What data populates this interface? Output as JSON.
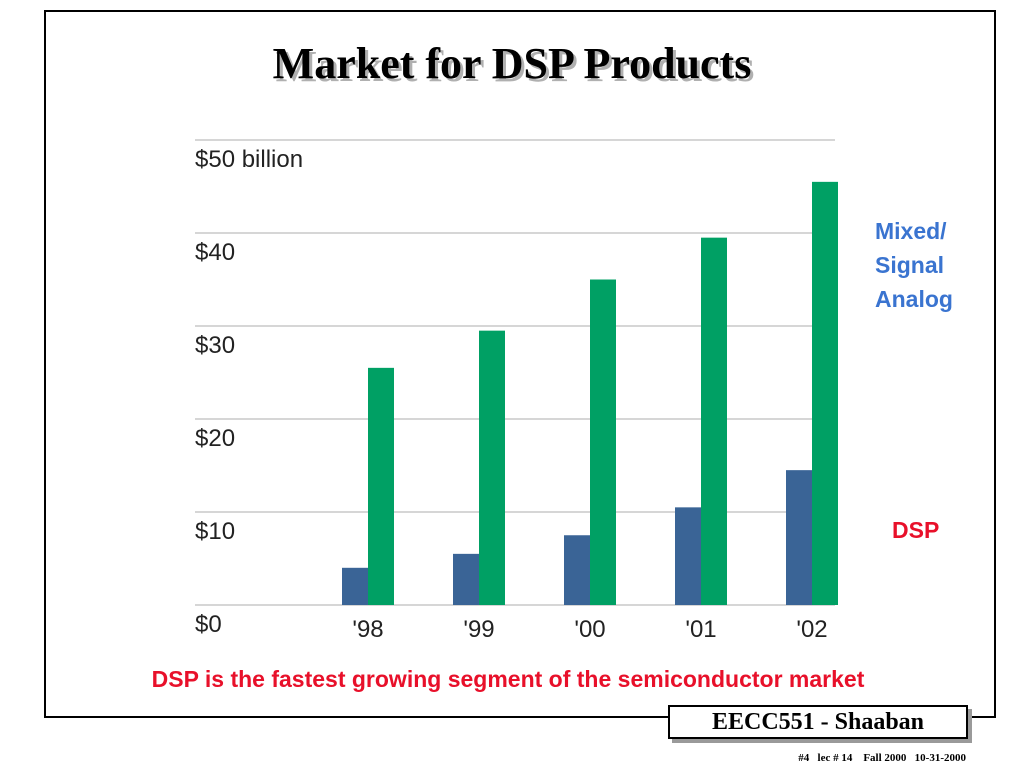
{
  "slide": {
    "title": "Market for DSP Products",
    "caption": "DSP is the fastest growing segment of the semiconductor market",
    "footer_title": "EECC551 - Shaaban",
    "footer_meta": "#4   lec # 14    Fall 2000   10-31-2000"
  },
  "chart_data": {
    "type": "bar",
    "categories": [
      "'98",
      "'99",
      "'00",
      "'01",
      "'02"
    ],
    "series": [
      {
        "name": "DSP",
        "values": [
          4,
          5.5,
          7.5,
          10.5,
          14.5
        ],
        "color": "#3a6496"
      },
      {
        "name": "Mixed/ Signal Analog",
        "values": [
          25.5,
          29.5,
          35,
          39.5,
          45.5
        ],
        "color": "#00a064"
      }
    ],
    "y_tick_labels": [
      "$0",
      "$10",
      "$20",
      "$30",
      "$40",
      "$50 billion"
    ],
    "y_ticks": [
      0,
      10,
      20,
      30,
      40,
      50
    ],
    "ylim": [
      0,
      50
    ],
    "grid": true,
    "legend": {
      "mixed_lines": [
        "Mixed/",
        "Signal",
        "Analog"
      ],
      "mixed_color": "#3a74d0",
      "dsp": "DSP",
      "dsp_color": "#e8102a"
    }
  }
}
